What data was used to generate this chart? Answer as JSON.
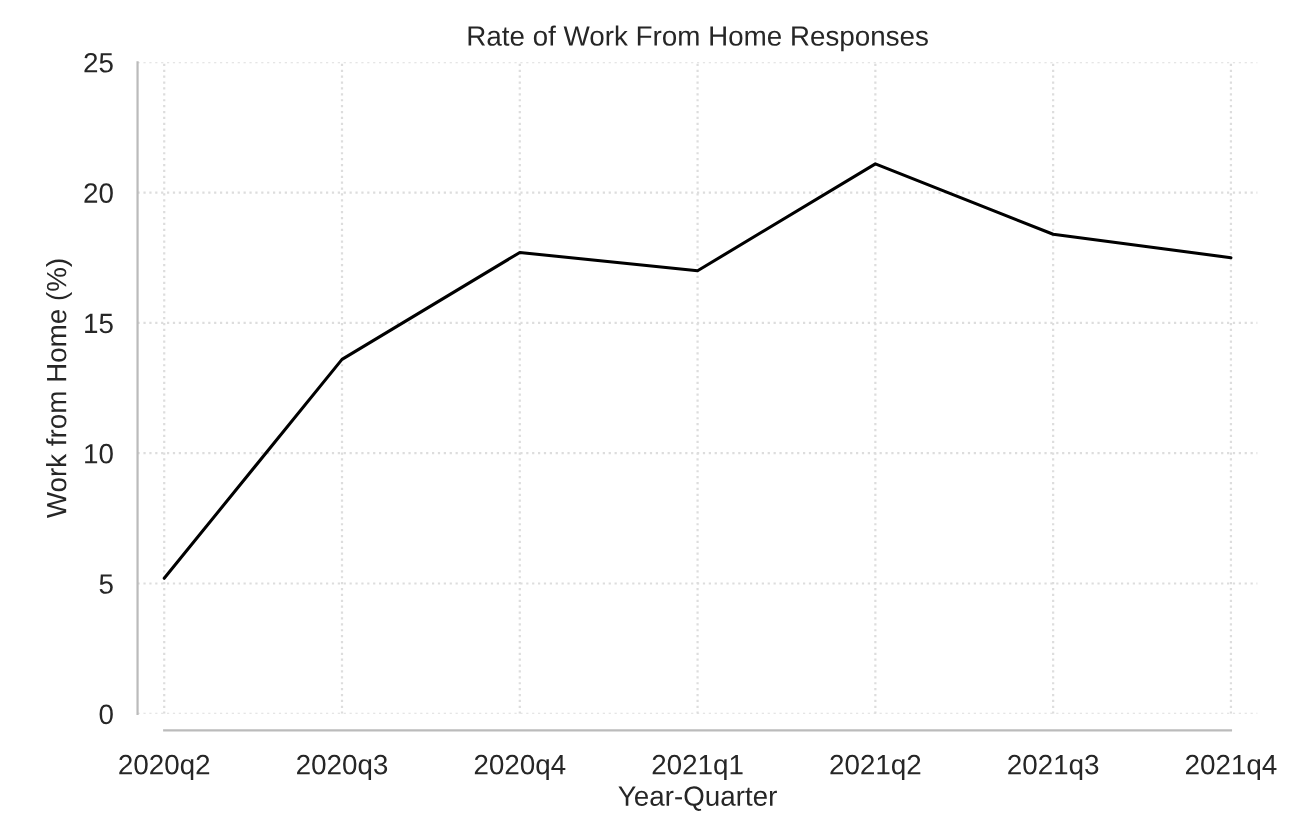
{
  "chart_data": {
    "type": "line",
    "title": "Rate of Work From Home Responses",
    "xlabel": "Year-Quarter",
    "ylabel": "Work from Home (%)",
    "categories": [
      "2020q2",
      "2020q3",
      "2020q4",
      "2021q1",
      "2021q2",
      "2021q3",
      "2021q4"
    ],
    "series": [
      {
        "color": "#000000",
        "values": [
          5.2,
          13.6,
          17.7,
          17.0,
          21.1,
          18.4,
          17.5
        ]
      }
    ],
    "ylim": [
      0,
      25
    ],
    "yticks": [
      0,
      5,
      10,
      15,
      20,
      25
    ],
    "grid": true,
    "legend": false,
    "marker": "none",
    "line_style": "solid"
  }
}
